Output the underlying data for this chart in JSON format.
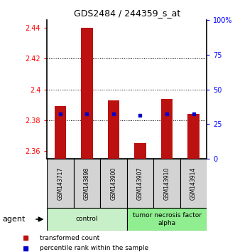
{
  "title": "GDS2484 / 244359_s_at",
  "samples": [
    "GSM143717",
    "GSM143898",
    "GSM143900",
    "GSM143907",
    "GSM143910",
    "GSM143914"
  ],
  "red_values": [
    2.389,
    2.44,
    2.393,
    2.365,
    2.394,
    2.384
  ],
  "blue_values": [
    2.384,
    2.384,
    2.384,
    2.383,
    2.384,
    2.384
  ],
  "ylim_left": [
    2.355,
    2.445
  ],
  "ylim_right": [
    0,
    100
  ],
  "yticks_left": [
    2.36,
    2.38,
    2.4,
    2.42,
    2.44
  ],
  "yticks_right": [
    0,
    25,
    50,
    75,
    100
  ],
  "ytick_labels_right": [
    "0",
    "25",
    "50",
    "75",
    "100%"
  ],
  "bar_color": "#bb1111",
  "dot_color": "#0000cc",
  "group_colors": [
    "#c8f0c8",
    "#90ee90"
  ],
  "group_labels": [
    "control",
    "tumor necrosis factor\nalpha"
  ],
  "group_ranges": [
    [
      0,
      3
    ],
    [
      3,
      6
    ]
  ],
  "sample_box_color": "#d3d3d3",
  "legend_red": "transformed count",
  "legend_blue": "percentile rank within the sample",
  "agent_label": "agent"
}
